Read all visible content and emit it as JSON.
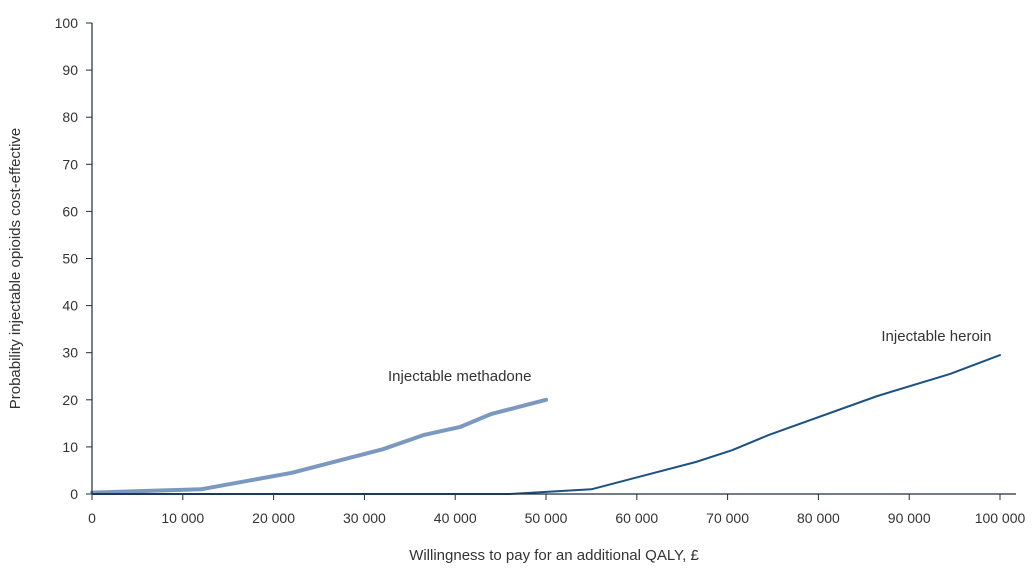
{
  "chart_data": {
    "type": "line",
    "xlabel": "Willingness to pay for an additional QALY, £",
    "ylabel": "Probability injectable opioids cost-effective",
    "xlim": [
      0,
      100000
    ],
    "ylim": [
      0,
      100
    ],
    "x_ticks": [
      0,
      10000,
      20000,
      30000,
      40000,
      50000,
      60000,
      70000,
      80000,
      90000,
      100000
    ],
    "x_tick_labels": [
      "0",
      "10 000",
      "20 000",
      "30 000",
      "40 000",
      "50 000",
      "60 000",
      "70 000",
      "80 000",
      "90 000",
      "100 000"
    ],
    "y_ticks": [
      0,
      10,
      20,
      30,
      40,
      50,
      60,
      70,
      80,
      90,
      100
    ],
    "y_tick_labels": [
      "0",
      "10",
      "20",
      "30",
      "40",
      "50",
      "60",
      "70",
      "80",
      "90",
      "100"
    ],
    "grid": false,
    "series": [
      {
        "name": "Injectable methadone",
        "color": "#7b99c0",
        "x": [
          0,
          12000,
          22000,
          32000,
          36500,
          40500,
          44000,
          50000
        ],
        "y": [
          0.3,
          1.0,
          4.5,
          9.5,
          12.5,
          14.2,
          17.0,
          20.0
        ]
      },
      {
        "name": "Injectable heroin",
        "color": "#1c5283",
        "x": [
          0,
          46000,
          55000,
          66500,
          70500,
          74500,
          86500,
          94500,
          100000
        ],
        "y": [
          0,
          0,
          1.0,
          6.8,
          9.3,
          12.5,
          20.8,
          25.5,
          29.5
        ]
      }
    ],
    "annotations": [
      {
        "text": "Injectable methadone",
        "series": 0
      },
      {
        "text": "Injectable heroin",
        "series": 1
      }
    ]
  }
}
